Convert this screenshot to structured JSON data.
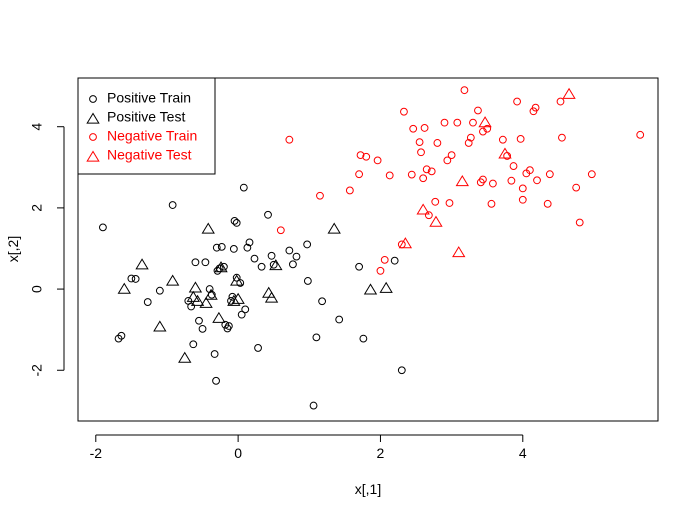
{
  "chart_data": {
    "type": "scatter",
    "title": "",
    "xlabel": "x[,1]",
    "ylabel": "x[,2]",
    "xlim": [
      -2.25,
      5.9
    ],
    "ylim": [
      -3.25,
      5.2
    ],
    "xticks": [
      -2,
      0,
      2,
      4
    ],
    "yticks": [
      -2,
      0,
      2,
      4
    ],
    "xtick_labels": [
      "-2",
      "0",
      "2",
      "4"
    ],
    "ytick_labels": [
      "-2",
      "0",
      "2",
      "4"
    ],
    "grid": false,
    "legend_position": "top-left",
    "series": [
      {
        "name": "Positive Train",
        "color": "#000000",
        "marker": "circle",
        "points": [
          [
            -1.9,
            1.52
          ],
          [
            -1.68,
            -1.22
          ],
          [
            -1.64,
            -1.15
          ],
          [
            -1.5,
            0.26
          ],
          [
            -1.44,
            0.25
          ],
          [
            -1.27,
            -0.32
          ],
          [
            -1.1,
            -0.04
          ],
          [
            -0.92,
            2.07
          ],
          [
            -0.7,
            -0.29
          ],
          [
            -0.66,
            -0.43
          ],
          [
            -0.63,
            -1.36
          ],
          [
            -0.6,
            0.66
          ],
          [
            -0.55,
            -0.78
          ],
          [
            -0.5,
            -0.98
          ],
          [
            -0.46,
            0.66
          ],
          [
            -0.4,
            0.0
          ],
          [
            -0.37,
            -0.14
          ],
          [
            -0.33,
            -1.6
          ],
          [
            -0.31,
            -2.26
          ],
          [
            -0.3,
            1.02
          ],
          [
            -0.29,
            0.45
          ],
          [
            -0.26,
            0.51
          ],
          [
            -0.23,
            1.04
          ],
          [
            -0.2,
            0.55
          ],
          [
            -0.18,
            -0.88
          ],
          [
            -0.15,
            -0.97
          ],
          [
            -0.13,
            -0.91
          ],
          [
            -0.1,
            -0.29
          ],
          [
            -0.08,
            -0.19
          ],
          [
            -0.06,
            0.99
          ],
          [
            -0.05,
            1.68
          ],
          [
            -0.02,
            1.63
          ],
          [
            -0.02,
            0.28
          ],
          [
            0.03,
            0.15
          ],
          [
            0.05,
            -0.63
          ],
          [
            0.08,
            2.5
          ],
          [
            0.1,
            -0.5
          ],
          [
            0.13,
            1.02
          ],
          [
            0.16,
            1.15
          ],
          [
            0.23,
            0.75
          ],
          [
            0.28,
            -1.45
          ],
          [
            0.33,
            0.55
          ],
          [
            0.42,
            1.83
          ],
          [
            0.47,
            0.82
          ],
          [
            0.5,
            0.6
          ],
          [
            0.72,
            0.95
          ],
          [
            0.77,
            0.61
          ],
          [
            0.82,
            0.8
          ],
          [
            0.97,
            1.1
          ],
          [
            0.98,
            0.2
          ],
          [
            1.06,
            -2.87
          ],
          [
            1.1,
            -1.19
          ],
          [
            1.18,
            -0.3
          ],
          [
            1.42,
            -0.75
          ],
          [
            1.7,
            0.55
          ],
          [
            1.76,
            -1.22
          ],
          [
            2.2,
            0.7
          ],
          [
            2.3,
            -2.0
          ]
        ]
      },
      {
        "name": "Positive Test",
        "color": "#000000",
        "marker": "triangle",
        "points": [
          [
            -1.6,
            0.0
          ],
          [
            -1.35,
            0.6
          ],
          [
            -1.1,
            -0.93
          ],
          [
            -0.92,
            0.2
          ],
          [
            -0.75,
            -1.7
          ],
          [
            -0.63,
            -0.2
          ],
          [
            -0.6,
            0.03
          ],
          [
            -0.57,
            -0.3
          ],
          [
            -0.45,
            -0.35
          ],
          [
            -0.42,
            1.48
          ],
          [
            -0.38,
            -0.15
          ],
          [
            -0.27,
            -0.72
          ],
          [
            -0.24,
            0.53
          ],
          [
            -0.06,
            -0.3
          ],
          [
            0.0,
            -0.25
          ],
          [
            -0.02,
            0.2
          ],
          [
            0.43,
            -0.1
          ],
          [
            0.47,
            -0.22
          ],
          [
            0.53,
            0.58
          ],
          [
            1.35,
            1.48
          ],
          [
            1.86,
            -0.02
          ],
          [
            2.08,
            0.02
          ]
        ]
      },
      {
        "name": "Negative Train",
        "color": "#ff0000",
        "marker": "circle",
        "points": [
          [
            0.6,
            1.45
          ],
          [
            0.72,
            3.68
          ],
          [
            1.15,
            2.3
          ],
          [
            1.57,
            2.43
          ],
          [
            1.7,
            2.83
          ],
          [
            1.72,
            3.3
          ],
          [
            1.8,
            3.26
          ],
          [
            1.96,
            3.17
          ],
          [
            2.0,
            0.45
          ],
          [
            2.06,
            0.72
          ],
          [
            2.13,
            2.8
          ],
          [
            2.3,
            1.1
          ],
          [
            2.33,
            4.37
          ],
          [
            2.44,
            2.82
          ],
          [
            2.46,
            3.95
          ],
          [
            2.55,
            3.62
          ],
          [
            2.57,
            3.37
          ],
          [
            2.6,
            2.73
          ],
          [
            2.62,
            3.97
          ],
          [
            2.65,
            2.95
          ],
          [
            2.68,
            1.82
          ],
          [
            2.72,
            2.9
          ],
          [
            2.77,
            2.15
          ],
          [
            2.8,
            3.6
          ],
          [
            2.9,
            4.1
          ],
          [
            2.94,
            3.17
          ],
          [
            2.97,
            2.12
          ],
          [
            3.0,
            3.3
          ],
          [
            3.08,
            4.1
          ],
          [
            3.18,
            4.9
          ],
          [
            3.24,
            3.6
          ],
          [
            3.27,
            3.73
          ],
          [
            3.3,
            4.1
          ],
          [
            3.37,
            4.4
          ],
          [
            3.41,
            2.63
          ],
          [
            3.44,
            2.7
          ],
          [
            3.44,
            3.88
          ],
          [
            3.5,
            3.95
          ],
          [
            3.56,
            2.1
          ],
          [
            3.58,
            2.6
          ],
          [
            3.72,
            3.68
          ],
          [
            3.78,
            3.28
          ],
          [
            3.84,
            2.67
          ],
          [
            3.87,
            3.03
          ],
          [
            3.92,
            4.62
          ],
          [
            3.97,
            3.7
          ],
          [
            4.0,
            2.2
          ],
          [
            4.0,
            2.48
          ],
          [
            4.05,
            2.85
          ],
          [
            4.1,
            2.93
          ],
          [
            4.15,
            4.38
          ],
          [
            4.18,
            4.47
          ],
          [
            4.2,
            2.68
          ],
          [
            4.35,
            2.1
          ],
          [
            4.38,
            2.83
          ],
          [
            4.53,
            4.62
          ],
          [
            4.55,
            3.73
          ],
          [
            4.75,
            2.5
          ],
          [
            4.8,
            1.64
          ],
          [
            4.97,
            2.83
          ],
          [
            5.65,
            3.8
          ]
        ]
      },
      {
        "name": "Negative Test",
        "color": "#ff0000",
        "marker": "triangle",
        "points": [
          [
            2.35,
            1.12
          ],
          [
            2.6,
            1.95
          ],
          [
            2.78,
            1.65
          ],
          [
            3.1,
            0.9
          ],
          [
            3.15,
            2.65
          ],
          [
            3.47,
            4.1
          ],
          [
            3.75,
            3.33
          ],
          [
            4.65,
            4.8
          ]
        ]
      }
    ]
  }
}
